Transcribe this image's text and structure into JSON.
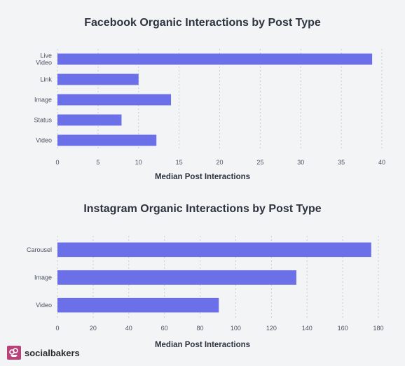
{
  "chart_data": [
    {
      "type": "bar",
      "orientation": "horizontal",
      "title": "Facebook Organic Interactions by Post Type",
      "xlabel": "Median Post Interactions",
      "ylabel": "",
      "categories": [
        [
          "Live",
          "Video"
        ],
        [
          "Link"
        ],
        [
          "Image"
        ],
        [
          "Status"
        ],
        [
          "Video"
        ]
      ],
      "values": [
        38.8,
        10,
        14,
        7.9,
        12.2
      ],
      "xlim": [
        0,
        40
      ],
      "ticks": [
        0,
        5,
        10,
        15,
        20,
        25,
        30,
        35,
        40
      ],
      "grid": true,
      "color": "#6b70e8"
    },
    {
      "type": "bar",
      "orientation": "horizontal",
      "title": "Instagram Organic Interactions by Post Type",
      "xlabel": "Median Post Interactions",
      "ylabel": "",
      "categories": [
        [
          "Carousel"
        ],
        [
          "Image"
        ],
        [
          "Video"
        ]
      ],
      "values": [
        176,
        134,
        90.5
      ],
      "xlim": [
        0,
        180
      ],
      "ticks": [
        0,
        20,
        40,
        60,
        80,
        100,
        120,
        140,
        160,
        180
      ],
      "grid": true,
      "color": "#6b70e8"
    }
  ],
  "brand": {
    "name": "socialbakers",
    "icon": "socialbakers-logo-icon",
    "color": "#b8437a"
  }
}
